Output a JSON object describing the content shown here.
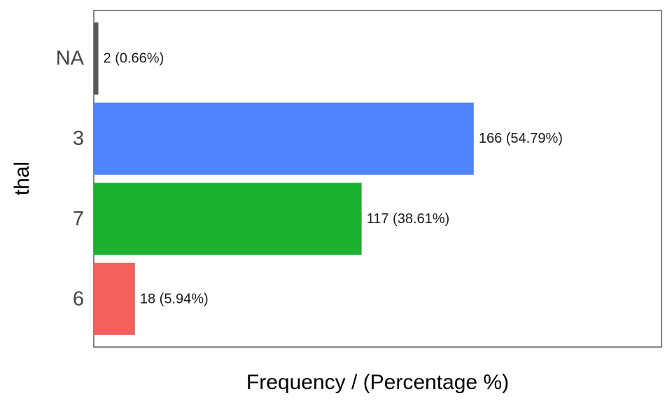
{
  "chart_data": {
    "type": "bar",
    "orientation": "horizontal",
    "categories": [
      "NA",
      "3",
      "7",
      "6"
    ],
    "values": [
      2,
      166,
      117,
      18
    ],
    "data_labels": [
      "2 (0.66%)",
      "166 (54.79%)",
      "117 (38.61%)",
      "18 (5.94%)"
    ],
    "colors": [
      "#595959",
      "#4F86FF",
      "#1AB22E",
      "#F5605C"
    ],
    "xlabel": "Frequency / (Percentage %)",
    "ylabel": "thal",
    "xlim": [
      0,
      248
    ],
    "grid": false,
    "legend": "none"
  }
}
